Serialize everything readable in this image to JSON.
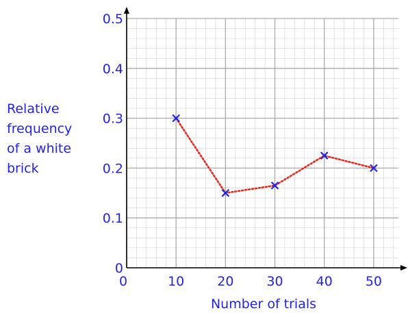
{
  "chart_data": {
    "type": "line",
    "x": [
      10,
      20,
      30,
      40,
      50
    ],
    "values": [
      0.3,
      0.15,
      0.165,
      0.225,
      0.2
    ],
    "xlim": [
      0,
      55
    ],
    "ylim": [
      0,
      0.5
    ],
    "xticks": [
      0,
      10,
      20,
      30,
      40,
      50
    ],
    "xtick_labels": [
      "0",
      "10",
      "20",
      "30",
      "40",
      "50"
    ],
    "yticks": [
      0,
      0.1,
      0.2,
      0.3,
      0.4,
      0.5
    ],
    "ytick_labels": [
      "0",
      "0.1",
      "0.2",
      "0.3",
      "0.4",
      "0.5"
    ],
    "xlabel": "Number of trials",
    "ylabel_lines": [
      "Relative",
      "frequency",
      "of a white",
      "brick"
    ],
    "grid": true,
    "grid_minor_divisions": 5,
    "marker": "x",
    "line_style": "dotted",
    "colors": {
      "text": "#2323e0",
      "marker": "#2323e0",
      "line": "#e8281e",
      "grid_major": "#aaaaaa",
      "grid_minor": "#d0d0d0",
      "axis": "#000000"
    }
  }
}
